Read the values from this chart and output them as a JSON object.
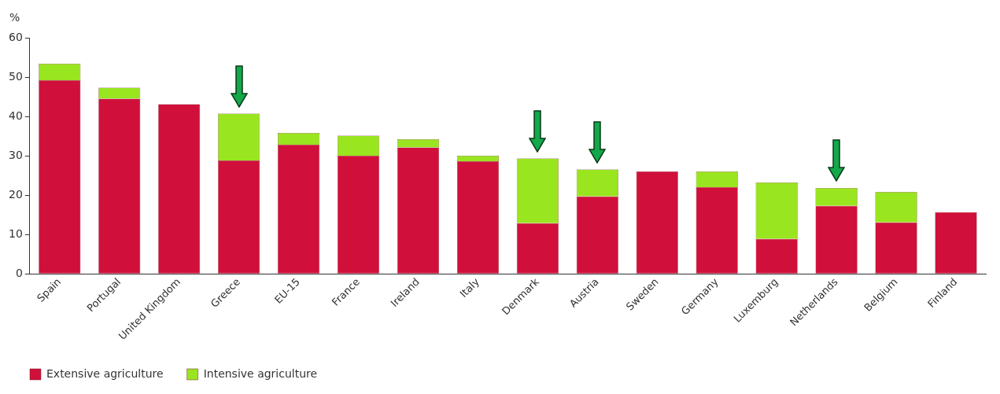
{
  "chart_data": {
    "type": "bar",
    "ylabel": "%",
    "stacked": true,
    "categories": [
      "Spain",
      "Portugal",
      "United Kingdom",
      "Greece",
      "EU-15",
      "France",
      "Ireland",
      "Italy",
      "Denmark",
      "Austria",
      "Sweden",
      "Germany",
      "Luxemburg",
      "Netherlands",
      "Belgium",
      "Finland"
    ],
    "series": [
      {
        "name": "Extensive agriculture",
        "color": "#d0103a",
        "values": [
          49.2,
          44.5,
          43.1,
          28.8,
          32.8,
          30,
          32.1,
          28.6,
          12.9,
          19.7,
          26,
          22,
          8.9,
          17.3,
          13.1,
          15.7
        ]
      },
      {
        "name": "Intensive agriculture",
        "color": "#99e51f",
        "values": [
          4.2,
          2.8,
          0,
          11.9,
          3,
          5.1,
          2.1,
          1.4,
          16.4,
          6.8,
          0,
          4,
          14.3,
          4.5,
          7.7,
          0
        ]
      }
    ],
    "ylim": [
      0,
      60
    ],
    "yticks": [
      0,
      10,
      20,
      30,
      40,
      50,
      60
    ],
    "grid": false,
    "legend": "bottom left"
  }
}
